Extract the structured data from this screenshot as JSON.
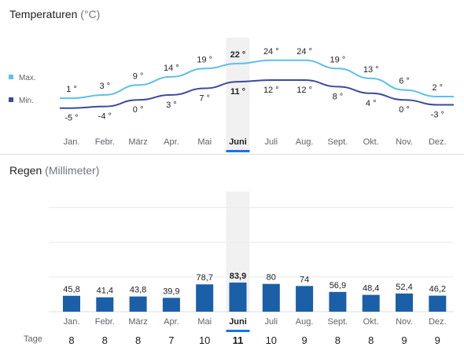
{
  "temperature": {
    "title": "Temperaturen",
    "unit": "(°C)",
    "legend": {
      "max": "Max.",
      "min": "Min."
    },
    "colors": {
      "max": "#5bc0eb",
      "min": "#3b4a9e"
    }
  },
  "rain": {
    "title": "Regen",
    "unit": "(Millimeter)",
    "days_label": "Tage",
    "bar_color": "#1a5fa8"
  },
  "selected_month_index": 5,
  "highlight_color": "#f1f1f1",
  "accent_color": "#1a73e8",
  "chart_data": [
    {
      "type": "line",
      "title": "Temperaturen",
      "categories": [
        "Jan.",
        "Febr.",
        "März",
        "Apr.",
        "Mai",
        "Juni",
        "Juli",
        "Aug.",
        "Sept.",
        "Okt.",
        "Nov.",
        "Dez."
      ],
      "series": [
        {
          "name": "Max.",
          "values": [
            1,
            3,
            9,
            14,
            19,
            22,
            24,
            24,
            19,
            13,
            6,
            2
          ],
          "labels": [
            "1 °",
            "3 °",
            "9 °",
            "14 °",
            "19 °",
            "22 °",
            "24 °",
            "24 °",
            "19 °",
            "13 °",
            "6 °",
            "2 °"
          ]
        },
        {
          "name": "Min.",
          "values": [
            -5,
            -4,
            0,
            3,
            7,
            11,
            12,
            12,
            8,
            4,
            0,
            -3
          ],
          "labels": [
            "-5 °",
            "-4 °",
            "0 °",
            "3 °",
            "7 °",
            "11 °",
            "12 °",
            "12 °",
            "8 °",
            "4 °",
            "0 °",
            "-3 °"
          ]
        }
      ],
      "grid": false,
      "legend": "left"
    },
    {
      "type": "bar",
      "title": "Regen",
      "categories": [
        "Jan.",
        "Febr.",
        "März",
        "Apr.",
        "Mai",
        "Juni",
        "Juli",
        "Aug.",
        "Sept.",
        "Okt.",
        "Nov.",
        "Dez."
      ],
      "values": [
        45.8,
        41.4,
        43.8,
        39.9,
        78.7,
        83.9,
        80,
        74,
        56.9,
        48.4,
        52.4,
        46.2
      ],
      "value_labels": [
        "45,8",
        "41,4",
        "43,8",
        "39,9",
        "78,7",
        "83,9",
        "80",
        "74",
        "56,9",
        "48,4",
        "52,4",
        "46,2"
      ],
      "days": [
        8,
        8,
        8,
        7,
        10,
        11,
        10,
        9,
        8,
        8,
        9,
        9
      ],
      "grid": true,
      "ylim": [
        0,
        300
      ]
    }
  ]
}
